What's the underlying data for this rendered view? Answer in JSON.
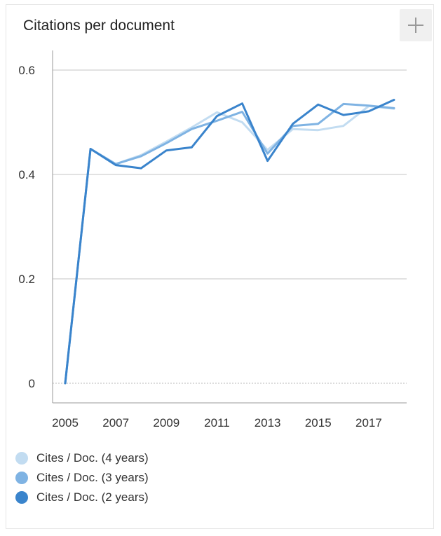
{
  "card": {
    "title": "Citations per document"
  },
  "chart_data": {
    "type": "line",
    "x": [
      2005,
      2006,
      2007,
      2008,
      2009,
      2010,
      2011,
      2012,
      2013,
      2014,
      2015,
      2016,
      2017,
      2018
    ],
    "xticks": [
      "2005",
      "2007",
      "2009",
      "2011",
      "2013",
      "2015",
      "2017"
    ],
    "yticks": [
      "0",
      "0.2",
      "0.4",
      "0.6"
    ],
    "ylim": [
      0,
      0.6
    ],
    "xlim": [
      2005,
      2018
    ],
    "grid": true,
    "legend_position": "bottom",
    "series": [
      {
        "name": "Cites / Doc. (4 years)",
        "color": "#c2dcf1",
        "values": [
          0,
          0.449,
          0.42,
          0.437,
          0.463,
          0.49,
          0.519,
          0.5,
          0.447,
          0.487,
          0.485,
          0.493,
          0.531,
          0.526
        ]
      },
      {
        "name": "Cites / Doc. (3 years)",
        "color": "#7fb3e3",
        "values": [
          0,
          0.449,
          0.42,
          0.435,
          0.46,
          0.487,
          0.503,
          0.52,
          0.44,
          0.493,
          0.497,
          0.535,
          0.532,
          0.527
        ]
      },
      {
        "name": "Cites / Doc. (2 years)",
        "color": "#3a84cc",
        "values": [
          0,
          0.449,
          0.418,
          0.412,
          0.446,
          0.452,
          0.512,
          0.536,
          0.426,
          0.497,
          0.534,
          0.514,
          0.521,
          0.543
        ]
      }
    ]
  }
}
